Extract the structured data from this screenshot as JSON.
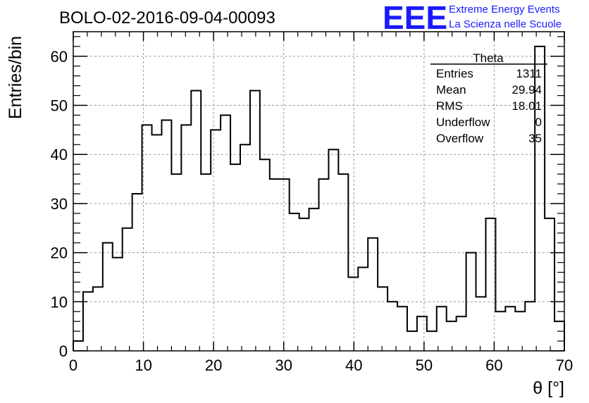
{
  "header": {
    "title": "BOLO-02-2016-09-04-00093",
    "logo_text": "EEE",
    "logo_line1": "Extreme Energy Events",
    "logo_line2": "La Scienza nelle Scuole",
    "logo_color": "#1a1aff"
  },
  "stats_box": {
    "title": "Theta",
    "rows": [
      {
        "label": "Entries",
        "value": "1311"
      },
      {
        "label": "Mean",
        "value": "29.94"
      },
      {
        "label": "RMS",
        "value": "18.01"
      },
      {
        "label": "Underflow",
        "value": "0"
      },
      {
        "label": "Overflow",
        "value": "35"
      }
    ]
  },
  "chart_data": {
    "type": "histogram",
    "title": "BOLO-02-2016-09-04-00093",
    "xlabel": "θ [°]",
    "ylabel": "Entries/bin",
    "xlim": [
      0,
      70
    ],
    "ylim": [
      0,
      65
    ],
    "bin_width": 1.4,
    "bin_edges_start": 0,
    "values": [
      2,
      12,
      13,
      22,
      19,
      25,
      32,
      46,
      44,
      47,
      36,
      46,
      53,
      36,
      45,
      48,
      38,
      42,
      53,
      39,
      35,
      35,
      28,
      27,
      29,
      35,
      41,
      36,
      15,
      17,
      23,
      13,
      10,
      9,
      4,
      7,
      4,
      9,
      6,
      7,
      20,
      11,
      27,
      8,
      9,
      8,
      10,
      62,
      27,
      6
    ],
    "xticks": [
      "0",
      "10",
      "20",
      "30",
      "40",
      "50",
      "60",
      "70"
    ],
    "yticks": [
      "0",
      "10",
      "20",
      "30",
      "40",
      "50",
      "60"
    ],
    "grid": true,
    "line_color": "#000000"
  }
}
